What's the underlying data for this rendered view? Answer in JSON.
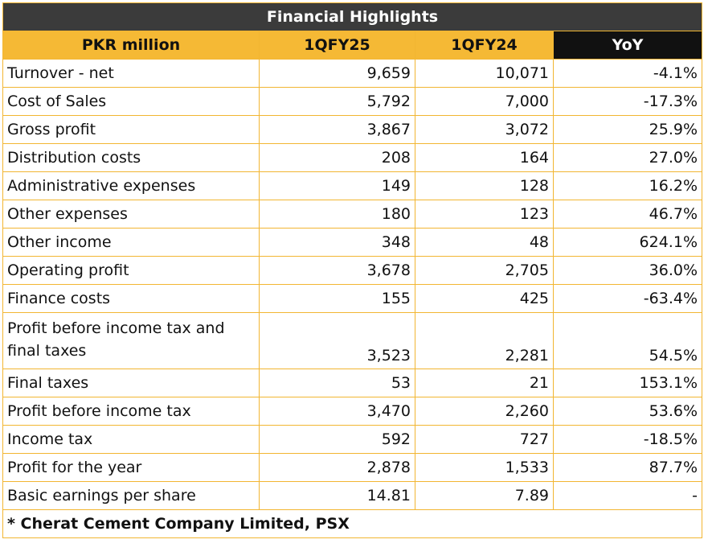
{
  "title": "Financial Highlights",
  "columns": [
    "PKR million",
    "1QFY25",
    "1QFY24",
    "YoY"
  ],
  "rows": [
    {
      "label": "Turnover - net",
      "fy25": "9,659",
      "fy24": "10,071",
      "yoy": "-4.1%"
    },
    {
      "label": "Cost of Sales",
      "fy25": "5,792",
      "fy24": "7,000",
      "yoy": "-17.3%"
    },
    {
      "label": "Gross profit",
      "fy25": "3,867",
      "fy24": "3,072",
      "yoy": "25.9%"
    },
    {
      "label": "Distribution costs",
      "fy25": "208",
      "fy24": "164",
      "yoy": "27.0%"
    },
    {
      "label": "Administrative expenses",
      "fy25": "149",
      "fy24": "128",
      "yoy": "16.2%"
    },
    {
      "label": "Other expenses",
      "fy25": "180",
      "fy24": "123",
      "yoy": "46.7%"
    },
    {
      "label": "Other income",
      "fy25": "348",
      "fy24": "48",
      "yoy": "624.1%"
    },
    {
      "label": "Operating profit",
      "fy25": "3,678",
      "fy24": "2,705",
      "yoy": "36.0%"
    },
    {
      "label": "Finance costs",
      "fy25": "155",
      "fy24": "425",
      "yoy": "-63.4%"
    },
    {
      "label": "Profit before income tax and final taxes",
      "fy25": "3,523",
      "fy24": "2,281",
      "yoy": "54.5%"
    },
    {
      "label": "Final taxes",
      "fy25": "53",
      "fy24": "21",
      "yoy": "153.1%"
    },
    {
      "label": "Profit before income tax",
      "fy25": "3,470",
      "fy24": "2,260",
      "yoy": "53.6%"
    },
    {
      "label": "Income tax",
      "fy25": "592",
      "fy24": "727",
      "yoy": "-18.5%"
    },
    {
      "label": "Profit for the year",
      "fy25": "2,878",
      "fy24": "1,533",
      "yoy": "87.7%"
    },
    {
      "label": "Basic earnings per share",
      "fy25": "14.81",
      "fy24": "7.89",
      "yoy": "-"
    }
  ],
  "footnote": "* Cherat Cement Company Limited, PSX",
  "colors": {
    "border": "#f2b632",
    "title_bg": "#3b3b3b",
    "header_bg": "#f5b935",
    "yoy_header_bg": "#111111"
  }
}
